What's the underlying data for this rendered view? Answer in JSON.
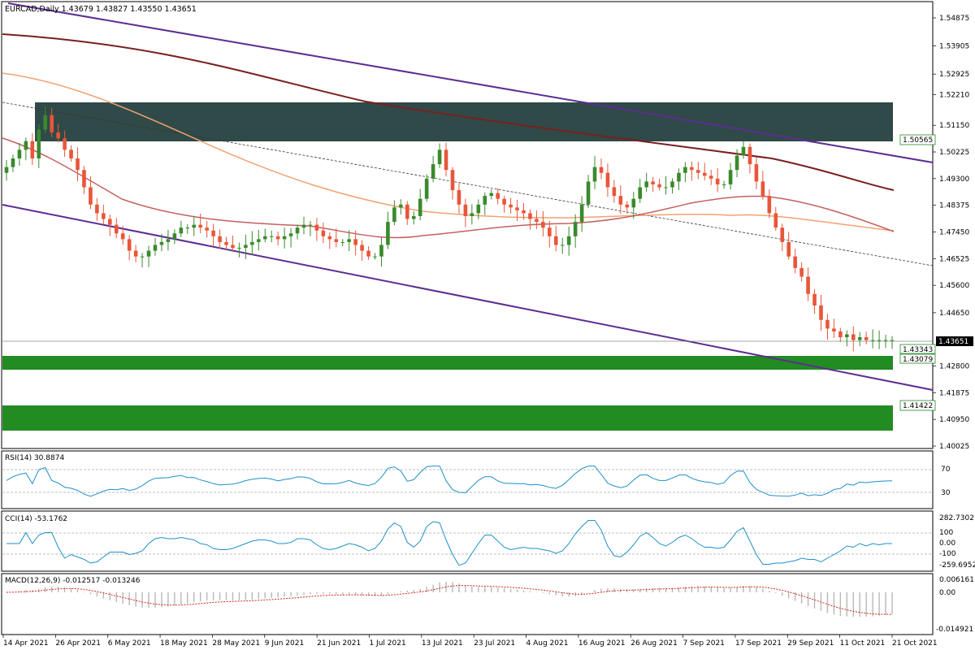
{
  "chart_data": {
    "type": "candlestick",
    "symbol_header": "EURCAD,Daily  1.43679 1.43827 1.43550 1.43651",
    "price_ticks": [
      "1.54875",
      "1.53905",
      "1.52925",
      "1.52210",
      "1.51150",
      "1.50225",
      "1.49300",
      "1.48375",
      "1.47450",
      "1.46525",
      "1.45600",
      "1.44650",
      "1.42800",
      "1.41875",
      "1.40950",
      "1.40025"
    ],
    "dates": [
      "14 Apr 2021",
      "26 Apr 2021",
      "6 May 2021",
      "18 May 2021",
      "28 May 2021",
      "9 Jun 2021",
      "21 Jun 2021",
      "1 Jul 2021",
      "13 Jul 2021",
      "23 Jul 2021",
      "4 Aug 2021",
      "16 Aug 2021",
      "26 Aug 2021",
      "7 Sep 2021",
      "17 Sep 2021",
      "29 Sep 2021",
      "11 Oct 2021",
      "21 Oct 2021"
    ],
    "current_price": "1.43651",
    "level_labels": [
      "1.50565",
      "1.43343",
      "1.43079",
      "1.41422"
    ],
    "closes": [
      1.497,
      1.5,
      1.503,
      1.506,
      1.5,
      1.51,
      1.515,
      1.509,
      1.507,
      1.503,
      1.5,
      1.496,
      1.49,
      1.484,
      1.481,
      1.479,
      1.477,
      1.474,
      1.472,
      1.468,
      1.466,
      1.466,
      1.468,
      1.47,
      1.471,
      1.472,
      1.474,
      1.476,
      1.476,
      1.477,
      1.476,
      1.475,
      1.473,
      1.471,
      1.47,
      1.469,
      1.469,
      1.47,
      1.471,
      1.472,
      1.473,
      1.473,
      1.472,
      1.473,
      1.474,
      1.476,
      1.477,
      1.477,
      1.475,
      1.473,
      1.472,
      1.471,
      1.471,
      1.472,
      1.47,
      1.468,
      1.466,
      1.466,
      1.47,
      1.478,
      1.483,
      1.484,
      1.479,
      1.48,
      1.486,
      1.493,
      1.498,
      1.503,
      1.496,
      1.489,
      1.484,
      1.48,
      1.481,
      1.484,
      1.487,
      1.488,
      1.486,
      1.484,
      1.483,
      1.482,
      1.481,
      1.479,
      1.478,
      1.476,
      1.473,
      1.47,
      1.47,
      1.473,
      1.478,
      1.484,
      1.492,
      1.497,
      1.495,
      1.49,
      1.487,
      1.484,
      1.483,
      1.486,
      1.49,
      1.492,
      1.491,
      1.49,
      1.49,
      1.492,
      1.495,
      1.497,
      1.496,
      1.495,
      1.494,
      1.493,
      1.491,
      1.491,
      1.496,
      1.501,
      1.504,
      1.498,
      1.492,
      1.487,
      1.481,
      1.476,
      1.471,
      1.466,
      1.462,
      1.459,
      1.453,
      1.449,
      1.444,
      1.441,
      1.44,
      1.438,
      1.439,
      1.437,
      1.438,
      1.437,
      1.437,
      1.437,
      1.437,
      1.437
    ],
    "rsi": {
      "label": "RSI(14) 30.8874",
      "levels": [
        "70",
        "30"
      ]
    },
    "cci": {
      "label": "CCI(14) -53.1762",
      "ticks": [
        "282.7302",
        "100",
        "0.00",
        "-100",
        "-259.6952"
      ]
    },
    "macd": {
      "label": "MACD(12,26,9) -0.012517 -0.013246",
      "ticks": [
        "0.006161",
        "0.00",
        "-0.014921"
      ]
    },
    "colors": {
      "bull": "#3a8a2c",
      "bear": "#e8563a",
      "channel": "#5c2d91",
      "ma_long": "#7a1f1f",
      "ma_mid": "#c46060",
      "ma_short": "#f2a272",
      "supply_zone": "#2f4a48",
      "demand_zone": "#228b22"
    }
  }
}
